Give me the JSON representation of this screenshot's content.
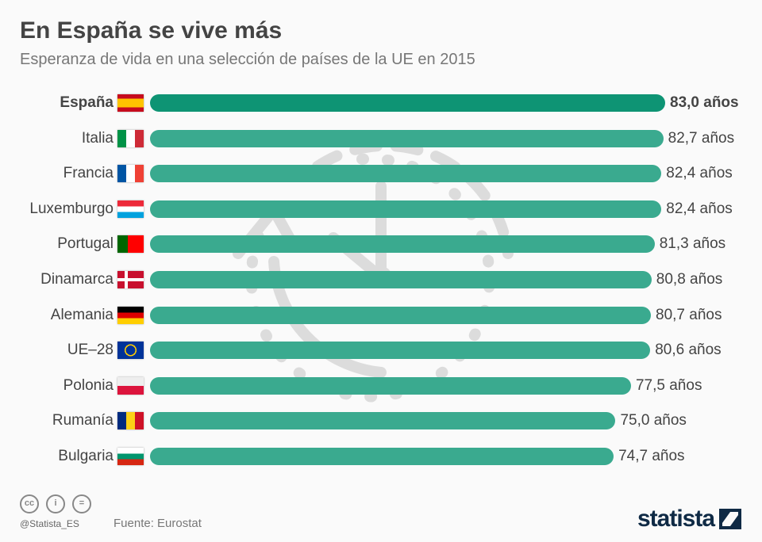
{
  "title": "En España se vive más",
  "subtitle": "Esperanza de vida en una selección de países de la UE en 2015",
  "chart_data": {
    "type": "bar",
    "orientation": "horizontal",
    "title": "En España se vive más",
    "subtitle": "Esperanza de vida en una selección de países de la UE en 2015",
    "categories": [
      "España",
      "Italia",
      "Francia",
      "Luxemburgo",
      "Portugal",
      "Dinamarca",
      "Alemania",
      "UE–28",
      "Polonia",
      "Rumanía",
      "Bulgaria"
    ],
    "values": [
      83.0,
      82.7,
      82.4,
      82.4,
      81.3,
      80.8,
      80.7,
      80.6,
      77.5,
      75.0,
      74.7
    ],
    "value_labels": [
      "83,0 años",
      "82,7 años",
      "82,4 años",
      "82,4 años",
      "81,3 años",
      "80,8 años",
      "80,7 años",
      "80,6 años",
      "77,5 años",
      "75,0 años",
      "74,7 años"
    ],
    "highlight": "España",
    "xlim": [
      0,
      83
    ],
    "colors": {
      "highlight": "#0e9474",
      "default": "#3aaa8f"
    }
  },
  "footer": {
    "handle": "@Statista_ES",
    "source": "Fuente: Eurostat",
    "logo": "statista",
    "license_icons": [
      "cc",
      "by",
      "nd"
    ]
  }
}
